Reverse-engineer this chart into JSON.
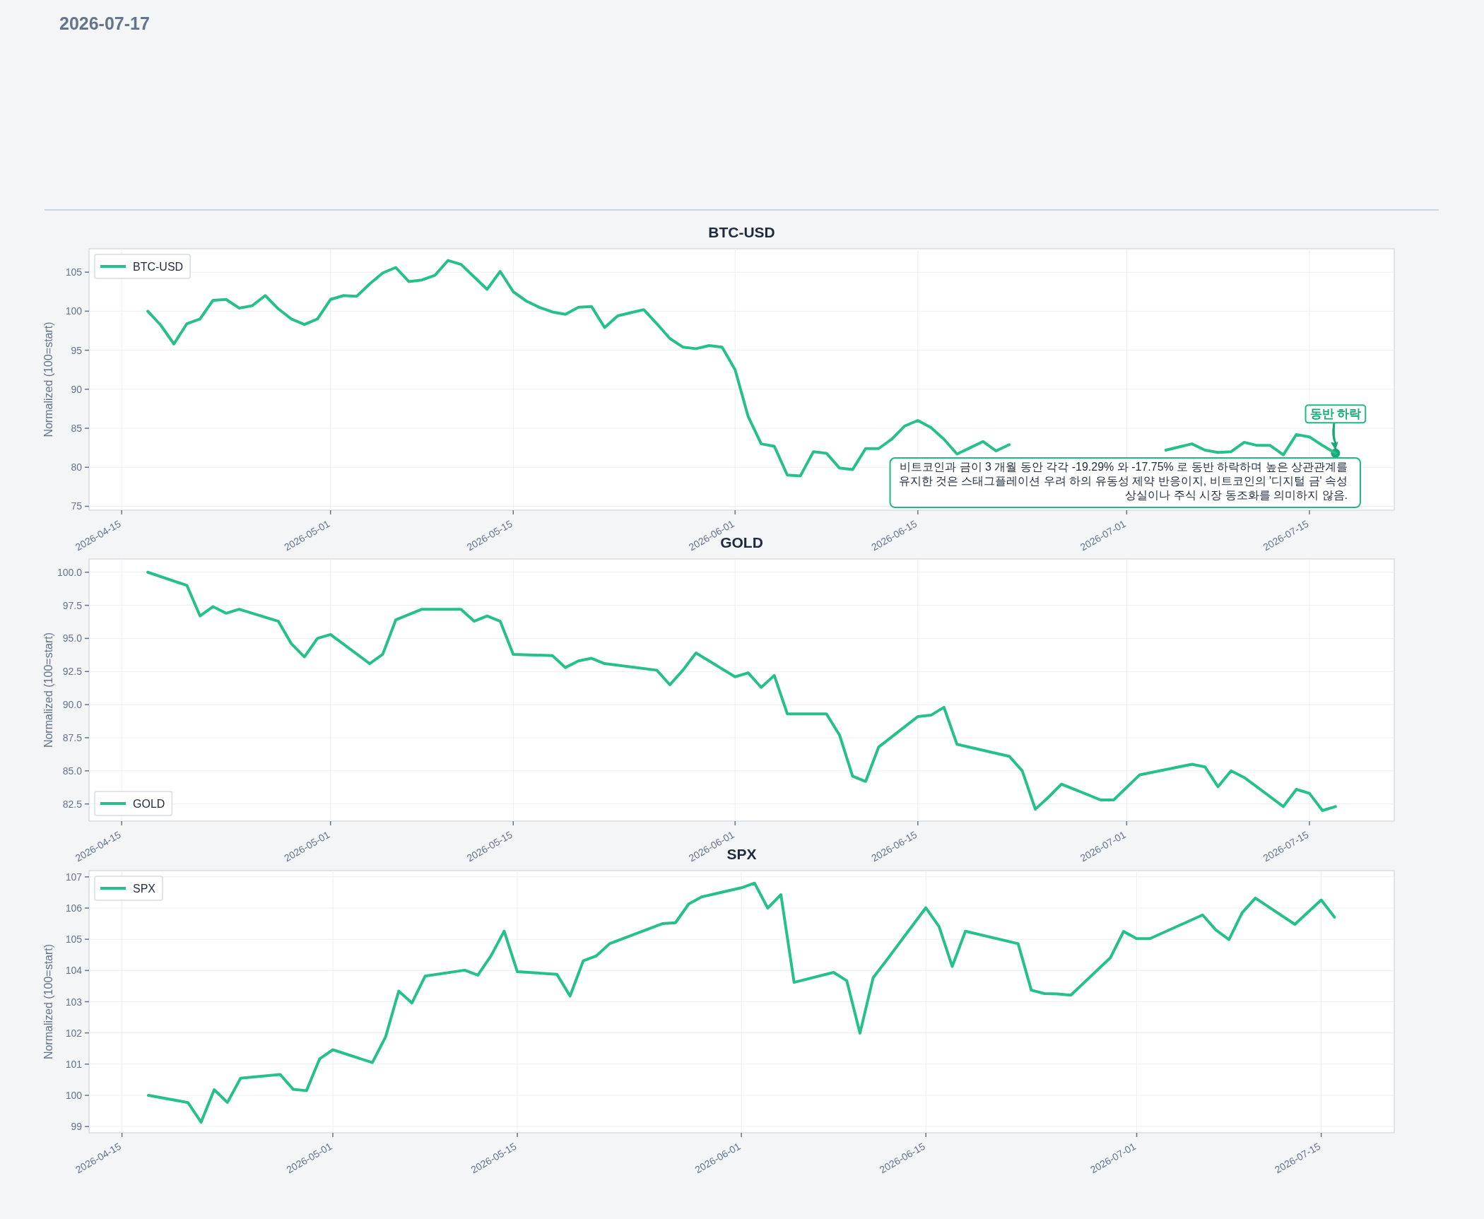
{
  "chart_data": [
    {
      "type": "line",
      "title": "BTC-USD",
      "ylabel": "Normalized (100=start)",
      "xlim": [
        "2026-04-12T12:00",
        "2026-07-21T12:00"
      ],
      "ylim": [
        74.5,
        108.0
      ],
      "xticks": [
        "2026-04-15",
        "2026-05-01",
        "2026-05-15",
        "2026-06-01",
        "2026-06-15",
        "2026-07-01",
        "2026-07-15"
      ],
      "yticks": [
        75,
        80,
        85,
        90,
        95,
        100,
        105
      ],
      "grid": true,
      "legend": "top left",
      "series": [
        {
          "name": "BTC-USD",
          "color": "#26c08a",
          "x": [
            "2026-04-17",
            "2026-04-18",
            "2026-04-19",
            "2026-04-20",
            "2026-04-21",
            "2026-04-22",
            "2026-04-23",
            "2026-04-24",
            "2026-04-25",
            "2026-04-26",
            "2026-04-27",
            "2026-04-28",
            "2026-04-29",
            "2026-04-30",
            "2026-05-01",
            "2026-05-02",
            "2026-05-03",
            "2026-05-04",
            "2026-05-05",
            "2026-05-06",
            "2026-05-07",
            "2026-05-08",
            "2026-05-09",
            "2026-05-10",
            "2026-05-11",
            "2026-05-12",
            "2026-05-13",
            "2026-05-14",
            "2026-05-15",
            "2026-05-16",
            "2026-05-17",
            "2026-05-18",
            "2026-05-19",
            "2026-05-20",
            "2026-05-21",
            "2026-05-22",
            "2026-05-23",
            "2026-05-24",
            "2026-05-25",
            "2026-05-26",
            "2026-05-27",
            "2026-05-28",
            "2026-05-29",
            "2026-05-30",
            "2026-05-31",
            "2026-06-01",
            "2026-06-02",
            "2026-06-03",
            "2026-06-04",
            "2026-06-05",
            "2026-06-06",
            "2026-06-07",
            "2026-06-08",
            "2026-06-09",
            "2026-06-10",
            "2026-06-11",
            "2026-06-12",
            "2026-06-13",
            "2026-06-14",
            "2026-06-15",
            "2026-06-16",
            "2026-06-17",
            "2026-06-18",
            "2026-06-19",
            "2026-06-20",
            "2026-06-21",
            "2026-06-22",
            "2026-06-23",
            "2026-06-24",
            "2026-06-25",
            "2026-06-26",
            "2026-06-27",
            "2026-06-28",
            "2026-06-29",
            "2026-06-30",
            "2026-07-01",
            "2026-07-02",
            "2026-07-03",
            "2026-07-04",
            "2026-07-05",
            "2026-07-06",
            "2026-07-07",
            "2026-07-08",
            "2026-07-09",
            "2026-07-10",
            "2026-07-11",
            "2026-07-12",
            "2026-07-13",
            "2026-07-14",
            "2026-07-15",
            "2026-07-16",
            "2026-07-17"
          ],
          "values": [
            100.0,
            98.2,
            95.8,
            98.4,
            99.0,
            101.4,
            101.5,
            100.4,
            100.7,
            102.0,
            100.3,
            99.0,
            98.3,
            99.0,
            101.5,
            102.0,
            101.9,
            103.5,
            104.9,
            105.6,
            103.8,
            104.0,
            104.6,
            106.5,
            106.0,
            104.4,
            102.8,
            105.1,
            102.5,
            101.3,
            100.5,
            99.9,
            99.6,
            100.5,
            100.6,
            97.9,
            99.4,
            99.8,
            100.2,
            98.4,
            96.5,
            95.4,
            95.2,
            95.6,
            95.4,
            92.5,
            86.5,
            83.0,
            82.7,
            79.0,
            78.9,
            82.0,
            81.8,
            79.9,
            79.7,
            82.4,
            82.4,
            83.6,
            85.3,
            86.0,
            85.1,
            83.6,
            81.7,
            82.5,
            83.3,
            82.1,
            82.9,
            null,
            null,
            null,
            null,
            null,
            null,
            null,
            null,
            null,
            null,
            null,
            82.2,
            82.6,
            83.0,
            82.2,
            81.9,
            82.0,
            83.2,
            82.8,
            82.8,
            81.6,
            84.2,
            83.9,
            82.8,
            81.8
          ]
        }
      ],
      "annotations": [
        {
          "text": "동반 하락",
          "x": "2026-07-17",
          "y": 81.8
        },
        "비트코인과 금이 3 개월 동안 각각 -19.29% 와 -17.75% 로 동반 하락하며 높은 상관관계를 유지한 것은 스태그플레이션 우려 하의 유동성 제약 반응이지, 비트코인의 '디지털 금' 속성 상실이나 주식 시장 동조화를 의미하지 않음.",
        "2026-07-17"
      ]
    },
    {
      "type": "line",
      "title": "GOLD",
      "ylabel": "Normalized (100=start)",
      "xlim": [
        "2026-04-12T12:00",
        "2026-07-21T12:00"
      ],
      "ylim": [
        81.2,
        101.0
      ],
      "xticks": [
        "2026-04-15",
        "2026-05-01",
        "2026-05-15",
        "2026-06-01",
        "2026-06-15",
        "2026-07-01",
        "2026-07-15"
      ],
      "yticks": [
        {
          "value": 82.5,
          "label": "82.5"
        },
        {
          "value": 85,
          "label": "85.0"
        },
        {
          "value": 87.5,
          "label": "87.5"
        },
        {
          "value": 90,
          "label": "90.0"
        },
        {
          "value": 92.5,
          "label": "92.5"
        },
        {
          "value": 95,
          "label": "95.0"
        },
        {
          "value": 97.5,
          "label": "97.5"
        },
        {
          "value": 100,
          "label": "100.0"
        }
      ],
      "grid": true,
      "legend": "bottom left",
      "series": [
        {
          "name": "GOLD",
          "color": "#26c08a",
          "x": [
            "2026-04-17",
            "2026-04-20",
            "2026-04-21",
            "2026-04-22",
            "2026-04-23",
            "2026-04-24",
            "2026-04-27",
            "2026-04-28",
            "2026-04-29",
            "2026-04-30",
            "2026-05-01",
            "2026-05-04",
            "2026-05-05",
            "2026-05-06",
            "2026-05-07",
            "2026-05-08",
            "2026-05-11",
            "2026-05-12",
            "2026-05-13",
            "2026-05-14",
            "2026-05-15",
            "2026-05-18",
            "2026-05-19",
            "2026-05-20",
            "2026-05-21",
            "2026-05-22",
            "2026-05-26",
            "2026-05-27",
            "2026-05-28",
            "2026-05-29",
            "2026-06-01",
            "2026-06-02",
            "2026-06-03",
            "2026-06-04",
            "2026-06-05",
            "2026-06-08",
            "2026-06-09",
            "2026-06-10",
            "2026-06-11",
            "2026-06-12",
            "2026-06-15",
            "2026-06-16",
            "2026-06-17",
            "2026-06-18",
            "2026-06-22",
            "2026-06-23",
            "2026-06-24",
            "2026-06-25",
            "2026-06-26",
            "2026-06-29",
            "2026-06-30",
            "2026-07-02",
            "2026-07-06",
            "2026-07-07",
            "2026-07-08",
            "2026-07-09",
            "2026-07-10",
            "2026-07-13",
            "2026-07-14",
            "2026-07-15",
            "2026-07-16",
            "2026-07-17"
          ],
          "values": [
            100.0,
            99.0,
            96.7,
            97.4,
            96.9,
            97.2,
            96.3,
            94.6,
            93.6,
            95.0,
            95.3,
            93.1,
            93.8,
            96.4,
            96.8,
            97.2,
            97.2,
            96.3,
            96.7,
            96.3,
            93.8,
            93.7,
            92.8,
            93.3,
            93.5,
            93.1,
            92.6,
            91.5,
            92.6,
            93.9,
            92.1,
            92.4,
            91.3,
            92.2,
            89.3,
            89.3,
            87.7,
            84.6,
            84.2,
            86.8,
            89.1,
            89.2,
            89.8,
            87.0,
            86.1,
            85.0,
            82.1,
            83.0,
            84.0,
            82.8,
            82.8,
            84.7,
            85.5,
            85.3,
            83.8,
            85.0,
            84.5,
            82.3,
            83.6,
            83.3,
            82.0,
            82.3
          ]
        }
      ]
    },
    {
      "type": "line",
      "title": "SPX",
      "ylabel": "Normalized (100=start)",
      "xlim": [
        "2026-04-12T12:00",
        "2026-07-20T13:00"
      ],
      "ylim": [
        98.8,
        107.2
      ],
      "xticks": [
        "2026-04-15",
        "2026-05-01",
        "2026-05-15",
        "2026-06-01",
        "2026-06-15",
        "2026-07-01",
        "2026-07-15"
      ],
      "yticks": [
        99,
        100,
        101,
        102,
        103,
        104,
        105,
        106,
        107
      ],
      "grid": true,
      "legend": "top left",
      "series": [
        {
          "name": "SPX",
          "color": "#26c08a",
          "x": [
            "2026-04-17",
            "2026-04-20",
            "2026-04-21",
            "2026-04-22",
            "2026-04-23",
            "2026-04-24",
            "2026-04-27",
            "2026-04-28",
            "2026-04-29",
            "2026-04-30",
            "2026-05-01",
            "2026-05-04",
            "2026-05-05",
            "2026-05-06",
            "2026-05-07",
            "2026-05-08",
            "2026-05-11",
            "2026-05-12",
            "2026-05-13",
            "2026-05-14",
            "2026-05-15",
            "2026-05-18",
            "2026-05-19",
            "2026-05-20",
            "2026-05-21",
            "2026-05-22",
            "2026-05-26",
            "2026-05-27",
            "2026-05-28",
            "2026-05-29",
            "2026-06-01",
            "2026-06-02",
            "2026-06-03",
            "2026-06-04",
            "2026-06-05",
            "2026-06-08",
            "2026-06-09",
            "2026-06-10",
            "2026-06-11",
            "2026-06-12",
            "2026-06-15",
            "2026-06-16",
            "2026-06-17",
            "2026-06-18",
            "2026-06-22",
            "2026-06-23",
            "2026-06-24",
            "2026-06-25",
            "2026-06-26",
            "2026-06-29",
            "2026-06-30",
            "2026-07-01",
            "2026-07-02",
            "2026-07-06",
            "2026-07-07",
            "2026-07-08",
            "2026-07-09",
            "2026-07-10",
            "2026-07-13",
            "2026-07-15",
            "2026-07-16"
          ],
          "values": [
            100.0,
            99.77,
            99.14,
            100.18,
            99.77,
            100.55,
            100.67,
            100.19,
            100.15,
            101.17,
            101.46,
            101.05,
            101.87,
            103.34,
            102.96,
            103.82,
            104.01,
            103.85,
            104.47,
            105.26,
            103.96,
            103.88,
            103.18,
            104.31,
            104.47,
            104.86,
            105.5,
            105.53,
            106.13,
            106.36,
            106.65,
            106.8,
            106.0,
            106.43,
            103.62,
            103.94,
            103.67,
            101.99,
            103.77,
            104.32,
            106.01,
            105.41,
            104.13,
            105.26,
            104.86,
            103.37,
            103.26,
            103.25,
            103.21,
            104.41,
            105.25,
            105.02,
            105.02,
            105.78,
            105.3,
            104.99,
            105.85,
            106.32,
            105.48,
            106.26,
            105.71
          ]
        }
      ]
    }
  ]
}
